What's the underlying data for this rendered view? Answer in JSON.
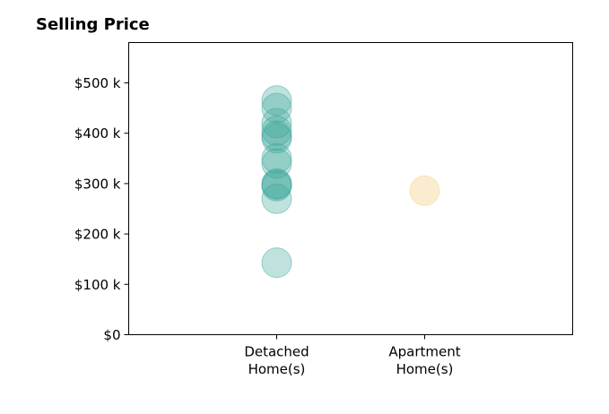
{
  "chart_data": {
    "type": "scatter",
    "title": "Selling Price",
    "xlabel": "",
    "ylabel": "",
    "categories": [
      [
        "Detached",
        "Home(s)"
      ],
      [
        "Apartment",
        "Home(s)"
      ]
    ],
    "y_ticks": [
      0,
      100000,
      200000,
      300000,
      400000,
      500000
    ],
    "y_tick_labels": [
      "$0",
      "$100 k",
      "$200 k",
      "$300 k",
      "$400 k",
      "$500 k"
    ],
    "ylim": [
      0,
      580000
    ],
    "x_range": [
      -1,
      2
    ],
    "grid": false,
    "legend": "none",
    "series": [
      {
        "category": 0,
        "color": "#3aa597",
        "opacity": 0.32,
        "values": [
          465000,
          450000,
          420000,
          405000,
          395000,
          390000,
          350000,
          340000,
          300000,
          298000,
          295000,
          270000,
          143000
        ]
      },
      {
        "category": 1,
        "color": "#f5dca0",
        "opacity": 0.5,
        "values": [
          286000
        ]
      }
    ]
  }
}
